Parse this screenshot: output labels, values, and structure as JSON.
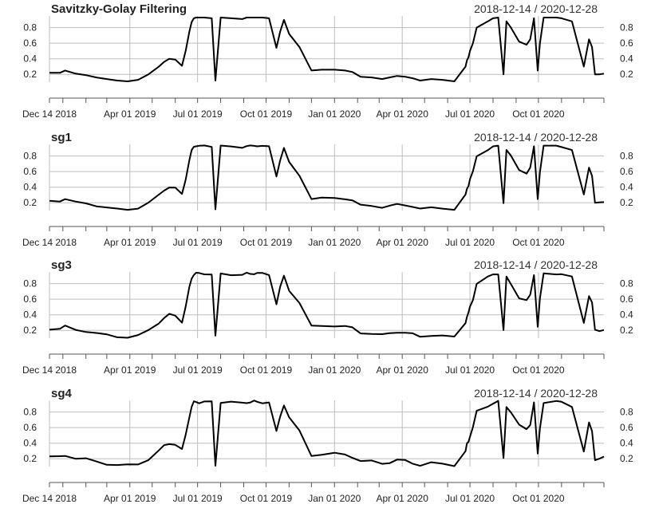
{
  "chart_data": {
    "type": "line",
    "x_range": [
      "2018-12-14",
      "2020-12-28"
    ],
    "x_tick_labels": [
      "Dec 14 2018",
      "Apr 01 2019",
      "Jul 01 2019",
      "Oct 01 2019",
      "Jan 01 2020",
      "Apr 01 2020",
      "Jul 01 2020",
      "Oct 01 2020"
    ],
    "x_tick_dates": [
      "2018-12-14",
      "2019-04-01",
      "2019-07-01",
      "2019-10-01",
      "2020-01-01",
      "2020-04-01",
      "2020-07-01",
      "2020-10-01"
    ],
    "y_ticks": [
      "0.2",
      "0.4",
      "0.6",
      "0.8"
    ],
    "ylim": [
      0.1,
      0.95
    ],
    "grid": true,
    "panels": [
      {
        "title": "Savitzky-Golay Filtering",
        "range_label": "2018-12-14 / 2020-12-28",
        "variant": 0
      },
      {
        "title": "sg1",
        "range_label": "2018-12-14 / 2020-12-28",
        "variant": 1
      },
      {
        "title": "sg3",
        "range_label": "2018-12-14 / 2020-12-28",
        "variant": 2
      },
      {
        "title": "sg4",
        "range_label": "2018-12-14 / 2020-12-28",
        "variant": 3
      }
    ],
    "x": [
      "2018-12-14",
      "2018-12-28",
      "2019-01-04",
      "2019-01-18",
      "2019-02-01",
      "2019-02-15",
      "2019-03-01",
      "2019-03-15",
      "2019-03-29",
      "2019-04-12",
      "2019-04-26",
      "2019-05-10",
      "2019-05-17",
      "2019-05-24",
      "2019-06-01",
      "2019-06-10",
      "2019-06-15",
      "2019-06-20",
      "2019-06-23",
      "2019-06-26",
      "2019-06-29",
      "2019-07-03",
      "2019-07-10",
      "2019-07-20",
      "2019-07-25",
      "2019-08-01",
      "2019-08-15",
      "2019-08-30",
      "2019-09-05",
      "2019-09-10",
      "2019-09-15",
      "2019-09-19",
      "2019-09-26",
      "2019-10-05",
      "2019-10-15",
      "2019-10-20",
      "2019-10-25",
      "2019-11-01",
      "2019-11-15",
      "2019-12-01",
      "2019-12-15",
      "2020-01-01",
      "2020-01-15",
      "2020-01-25",
      "2020-02-05",
      "2020-02-20",
      "2020-03-05",
      "2020-03-15",
      "2020-03-25",
      "2020-04-05",
      "2020-04-15",
      "2020-04-25",
      "2020-05-10",
      "2020-05-25",
      "2020-06-10",
      "2020-06-25",
      "2020-06-27",
      "2020-06-29",
      "2020-07-01",
      "2020-07-05",
      "2020-07-10",
      "2020-07-25",
      "2020-08-01",
      "2020-08-08",
      "2020-08-15",
      "2020-08-19",
      "2020-08-25",
      "2020-09-05",
      "2020-09-15",
      "2020-09-20",
      "2020-09-25",
      "2020-09-30",
      "2020-10-03",
      "2020-10-08",
      "2020-10-25",
      "2020-11-01",
      "2020-11-15",
      "2020-12-01",
      "2020-12-08",
      "2020-12-12",
      "2020-12-16",
      "2020-12-22",
      "2020-12-28"
    ],
    "series": [
      {
        "values": [
          0.22,
          0.22,
          0.25,
          0.21,
          0.19,
          0.16,
          0.14,
          0.12,
          0.11,
          0.13,
          0.2,
          0.3,
          0.36,
          0.4,
          0.39,
          0.31,
          0.5,
          0.75,
          0.87,
          0.92,
          0.93,
          0.93,
          0.93,
          0.92,
          0.12,
          0.93,
          0.92,
          0.91,
          0.93,
          0.93,
          0.93,
          0.93,
          0.93,
          0.92,
          0.54,
          0.75,
          0.9,
          0.72,
          0.55,
          0.25,
          0.26,
          0.26,
          0.25,
          0.23,
          0.17,
          0.16,
          0.14,
          0.16,
          0.18,
          0.17,
          0.15,
          0.12,
          0.14,
          0.13,
          0.11,
          0.3,
          0.38,
          0.42,
          0.5,
          0.6,
          0.8,
          0.88,
          0.92,
          0.93,
          0.2,
          0.88,
          0.8,
          0.62,
          0.58,
          0.65,
          0.92,
          0.25,
          0.6,
          0.93,
          0.93,
          0.92,
          0.88,
          0.3,
          0.65,
          0.55,
          0.2,
          0.2,
          0.21
        ]
      }
    ]
  }
}
